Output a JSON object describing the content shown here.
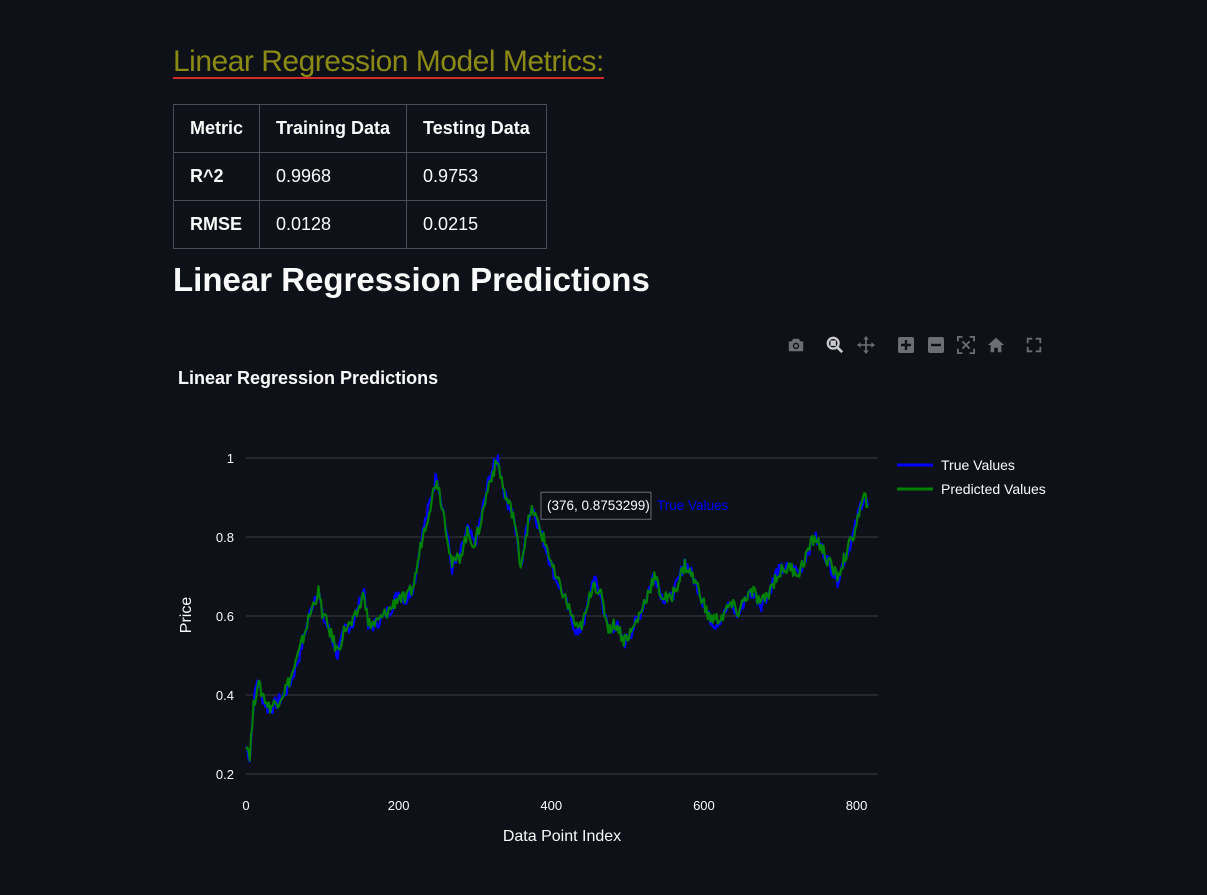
{
  "metrics_heading": "Linear Regression Model Metrics:",
  "metrics_table": {
    "headers": [
      "Metric",
      "Training Data",
      "Testing Data"
    ],
    "rows": [
      [
        "R^2",
        "0.9968",
        "0.9753"
      ],
      [
        "RMSE",
        "0.0128",
        "0.0215"
      ]
    ]
  },
  "predictions_heading": "Linear Regression Predictions",
  "toolbar": {
    "icons": [
      "camera-icon",
      "zoom-icon",
      "pan-icon",
      "zoom-in-icon",
      "zoom-out-icon",
      "autoscale-icon",
      "home-icon",
      "fullscreen-icon"
    ]
  },
  "colors": {
    "background": "#0e1117",
    "true_series": "#0000ff",
    "predicted_series": "#008000",
    "gridline": "#3a3d45",
    "heading_metrics": "#8a8a14",
    "heading_underline": "#d42a2a"
  },
  "tooltip": {
    "text": "(376, 0.8753299)",
    "series": "True Values",
    "x": 376,
    "y": 0.8753299
  },
  "chart_data": {
    "type": "line",
    "title": "Linear Regression Predictions",
    "xlabel": "Data Point Index",
    "ylabel": "Price",
    "xlim": [
      0,
      815
    ],
    "ylim": [
      0.2,
      1.0
    ],
    "xticks": [
      0,
      200,
      400,
      600,
      800
    ],
    "yticks": [
      0.2,
      0.4,
      0.6,
      0.8,
      1
    ],
    "grid": true,
    "legend_position": "top-right",
    "series": [
      {
        "name": "True Values",
        "color": "#0000ff",
        "points": [
          [
            0,
            0.27
          ],
          [
            5,
            0.24
          ],
          [
            10,
            0.38
          ],
          [
            15,
            0.44
          ],
          [
            20,
            0.4
          ],
          [
            30,
            0.36
          ],
          [
            40,
            0.38
          ],
          [
            50,
            0.4
          ],
          [
            60,
            0.44
          ],
          [
            70,
            0.5
          ],
          [
            80,
            0.58
          ],
          [
            90,
            0.65
          ],
          [
            95,
            0.67
          ],
          [
            100,
            0.6
          ],
          [
            110,
            0.56
          ],
          [
            120,
            0.5
          ],
          [
            130,
            0.57
          ],
          [
            140,
            0.58
          ],
          [
            150,
            0.64
          ],
          [
            155,
            0.67
          ],
          [
            160,
            0.57
          ],
          [
            170,
            0.58
          ],
          [
            180,
            0.6
          ],
          [
            190,
            0.62
          ],
          [
            200,
            0.66
          ],
          [
            210,
            0.64
          ],
          [
            220,
            0.68
          ],
          [
            230,
            0.8
          ],
          [
            240,
            0.88
          ],
          [
            250,
            0.96
          ],
          [
            260,
            0.85
          ],
          [
            270,
            0.72
          ],
          [
            280,
            0.75
          ],
          [
            290,
            0.82
          ],
          [
            300,
            0.78
          ],
          [
            310,
            0.87
          ],
          [
            320,
            0.96
          ],
          [
            330,
            1.0
          ],
          [
            340,
            0.9
          ],
          [
            350,
            0.86
          ],
          [
            360,
            0.72
          ],
          [
            370,
            0.85
          ],
          [
            376,
            0.875
          ],
          [
            385,
            0.82
          ],
          [
            395,
            0.76
          ],
          [
            405,
            0.7
          ],
          [
            415,
            0.66
          ],
          [
            425,
            0.6
          ],
          [
            435,
            0.55
          ],
          [
            445,
            0.6
          ],
          [
            455,
            0.7
          ],
          [
            465,
            0.65
          ],
          [
            475,
            0.56
          ],
          [
            485,
            0.58
          ],
          [
            495,
            0.53
          ],
          [
            505,
            0.56
          ],
          [
            515,
            0.6
          ],
          [
            525,
            0.65
          ],
          [
            535,
            0.71
          ],
          [
            545,
            0.65
          ],
          [
            555,
            0.64
          ],
          [
            565,
            0.68
          ],
          [
            575,
            0.74
          ],
          [
            585,
            0.7
          ],
          [
            595,
            0.66
          ],
          [
            605,
            0.6
          ],
          [
            615,
            0.58
          ],
          [
            625,
            0.6
          ],
          [
            635,
            0.63
          ],
          [
            645,
            0.6
          ],
          [
            655,
            0.65
          ],
          [
            665,
            0.66
          ],
          [
            675,
            0.63
          ],
          [
            685,
            0.66
          ],
          [
            695,
            0.71
          ],
          [
            705,
            0.72
          ],
          [
            715,
            0.72
          ],
          [
            725,
            0.71
          ],
          [
            735,
            0.76
          ],
          [
            745,
            0.8
          ],
          [
            755,
            0.77
          ],
          [
            765,
            0.73
          ],
          [
            775,
            0.69
          ],
          [
            785,
            0.75
          ],
          [
            795,
            0.8
          ],
          [
            805,
            0.88
          ],
          [
            810,
            0.9
          ],
          [
            815,
            0.88
          ]
        ]
      },
      {
        "name": "Predicted Values",
        "color": "#008000",
        "points": [
          [
            0,
            0.28
          ],
          [
            5,
            0.25
          ],
          [
            10,
            0.37
          ],
          [
            15,
            0.43
          ],
          [
            20,
            0.41
          ],
          [
            30,
            0.37
          ],
          [
            40,
            0.38
          ],
          [
            50,
            0.41
          ],
          [
            60,
            0.45
          ],
          [
            70,
            0.51
          ],
          [
            80,
            0.58
          ],
          [
            90,
            0.64
          ],
          [
            95,
            0.66
          ],
          [
            100,
            0.61
          ],
          [
            110,
            0.56
          ],
          [
            120,
            0.51
          ],
          [
            130,
            0.57
          ],
          [
            140,
            0.58
          ],
          [
            150,
            0.63
          ],
          [
            155,
            0.66
          ],
          [
            160,
            0.58
          ],
          [
            170,
            0.58
          ],
          [
            180,
            0.6
          ],
          [
            190,
            0.62
          ],
          [
            200,
            0.65
          ],
          [
            210,
            0.64
          ],
          [
            220,
            0.68
          ],
          [
            230,
            0.79
          ],
          [
            240,
            0.87
          ],
          [
            250,
            0.95
          ],
          [
            260,
            0.85
          ],
          [
            270,
            0.73
          ],
          [
            280,
            0.75
          ],
          [
            290,
            0.81
          ],
          [
            300,
            0.78
          ],
          [
            310,
            0.86
          ],
          [
            320,
            0.95
          ],
          [
            330,
            0.99
          ],
          [
            340,
            0.9
          ],
          [
            350,
            0.86
          ],
          [
            360,
            0.73
          ],
          [
            370,
            0.84
          ],
          [
            376,
            0.87
          ],
          [
            385,
            0.82
          ],
          [
            395,
            0.77
          ],
          [
            405,
            0.7
          ],
          [
            415,
            0.66
          ],
          [
            425,
            0.61
          ],
          [
            435,
            0.56
          ],
          [
            445,
            0.6
          ],
          [
            455,
            0.69
          ],
          [
            465,
            0.65
          ],
          [
            475,
            0.57
          ],
          [
            485,
            0.58
          ],
          [
            495,
            0.54
          ],
          [
            505,
            0.56
          ],
          [
            515,
            0.6
          ],
          [
            525,
            0.65
          ],
          [
            535,
            0.7
          ],
          [
            545,
            0.65
          ],
          [
            555,
            0.64
          ],
          [
            565,
            0.68
          ],
          [
            575,
            0.73
          ],
          [
            585,
            0.7
          ],
          [
            595,
            0.66
          ],
          [
            605,
            0.6
          ],
          [
            615,
            0.59
          ],
          [
            625,
            0.6
          ],
          [
            635,
            0.63
          ],
          [
            645,
            0.61
          ],
          [
            655,
            0.65
          ],
          [
            665,
            0.66
          ],
          [
            675,
            0.63
          ],
          [
            685,
            0.66
          ],
          [
            695,
            0.7
          ],
          [
            705,
            0.72
          ],
          [
            715,
            0.72
          ],
          [
            725,
            0.71
          ],
          [
            735,
            0.76
          ],
          [
            745,
            0.8
          ],
          [
            755,
            0.77
          ],
          [
            765,
            0.73
          ],
          [
            775,
            0.7
          ],
          [
            785,
            0.75
          ],
          [
            795,
            0.8
          ],
          [
            805,
            0.87
          ],
          [
            810,
            0.9
          ],
          [
            815,
            0.88
          ]
        ]
      }
    ]
  }
}
